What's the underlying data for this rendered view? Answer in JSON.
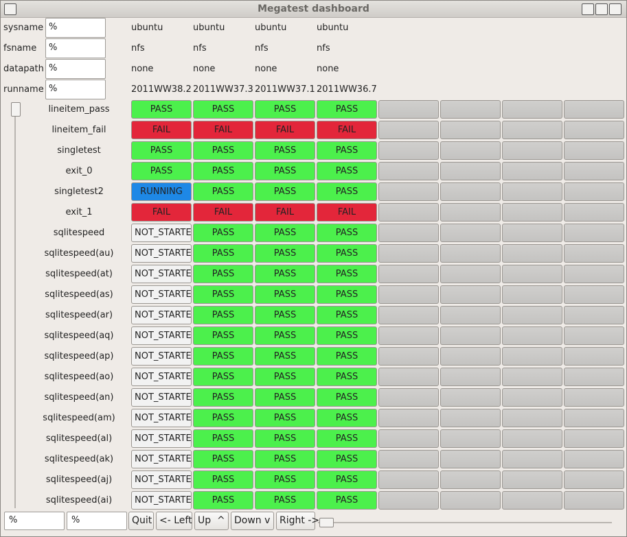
{
  "window": {
    "title": "Megatest dashboard"
  },
  "filters": [
    {
      "label": "sysname",
      "value": "%",
      "runs": [
        "ubuntu",
        "ubuntu",
        "ubuntu",
        "ubuntu"
      ]
    },
    {
      "label": "fsname",
      "value": "%",
      "runs": [
        "nfs",
        "nfs",
        "nfs",
        "nfs"
      ]
    },
    {
      "label": "datapath",
      "value": "%",
      "runs": [
        "none",
        "none",
        "none",
        "none"
      ]
    },
    {
      "label": "runname",
      "value": "%",
      "runs": [
        "2011WW38.2",
        "2011WW37.3",
        "2011WW37.1",
        "2011WW36.7"
      ]
    }
  ],
  "tests": [
    {
      "name": "lineitem_pass",
      "results": [
        "PASS",
        "PASS",
        "PASS",
        "PASS"
      ]
    },
    {
      "name": "lineitem_fail",
      "results": [
        "FAIL",
        "FAIL",
        "FAIL",
        "FAIL"
      ]
    },
    {
      "name": "singletest",
      "results": [
        "PASS",
        "PASS",
        "PASS",
        "PASS"
      ]
    },
    {
      "name": "exit_0",
      "results": [
        "PASS",
        "PASS",
        "PASS",
        "PASS"
      ]
    },
    {
      "name": "singletest2",
      "results": [
        "RUNNING",
        "PASS",
        "PASS",
        "PASS"
      ]
    },
    {
      "name": "exit_1",
      "results": [
        "FAIL",
        "FAIL",
        "FAIL",
        "FAIL"
      ]
    },
    {
      "name": "sqlitespeed",
      "results": [
        "NOT_STARTE",
        "PASS",
        "PASS",
        "PASS"
      ]
    },
    {
      "name": "sqlitespeed(au)",
      "results": [
        "NOT_STARTE",
        "PASS",
        "PASS",
        "PASS"
      ]
    },
    {
      "name": "sqlitespeed(at)",
      "results": [
        "NOT_STARTE",
        "PASS",
        "PASS",
        "PASS"
      ]
    },
    {
      "name": "sqlitespeed(as)",
      "results": [
        "NOT_STARTE",
        "PASS",
        "PASS",
        "PASS"
      ]
    },
    {
      "name": "sqlitespeed(ar)",
      "results": [
        "NOT_STARTE",
        "PASS",
        "PASS",
        "PASS"
      ]
    },
    {
      "name": "sqlitespeed(aq)",
      "results": [
        "NOT_STARTE",
        "PASS",
        "PASS",
        "PASS"
      ]
    },
    {
      "name": "sqlitespeed(ap)",
      "results": [
        "NOT_STARTE",
        "PASS",
        "PASS",
        "PASS"
      ]
    },
    {
      "name": "sqlitespeed(ao)",
      "results": [
        "NOT_STARTE",
        "PASS",
        "PASS",
        "PASS"
      ]
    },
    {
      "name": "sqlitespeed(an)",
      "results": [
        "NOT_STARTE",
        "PASS",
        "PASS",
        "PASS"
      ]
    },
    {
      "name": "sqlitespeed(am)",
      "results": [
        "NOT_STARTE",
        "PASS",
        "PASS",
        "PASS"
      ]
    },
    {
      "name": "sqlitespeed(al)",
      "results": [
        "NOT_STARTE",
        "PASS",
        "PASS",
        "PASS"
      ]
    },
    {
      "name": "sqlitespeed(ak)",
      "results": [
        "NOT_STARTE",
        "PASS",
        "PASS",
        "PASS"
      ]
    },
    {
      "name": "sqlitespeed(aj)",
      "results": [
        "NOT_STARTE",
        "PASS",
        "PASS",
        "PASS"
      ]
    },
    {
      "name": "sqlitespeed(ai)",
      "results": [
        "NOT_STARTE",
        "PASS",
        "PASS",
        "PASS"
      ]
    }
  ],
  "status_colors": {
    "PASS": "#4cf04c",
    "FAIL": "#e3263a",
    "RUNNING": "#1e88e6",
    "NOT_STARTE": "#f2f2f2"
  },
  "footer": {
    "inputs": [
      "%",
      "%"
    ],
    "buttons": [
      "Quit",
      "<- Left",
      "Up  ^",
      "Down v",
      "Right ->"
    ]
  }
}
